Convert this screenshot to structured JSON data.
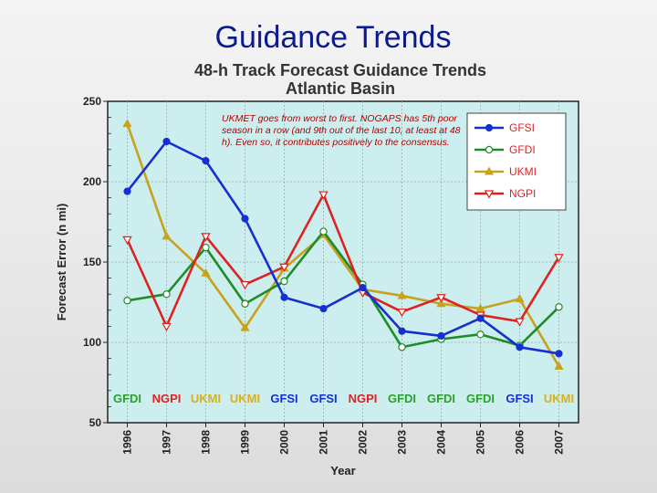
{
  "slide": {
    "title": "Guidance Trends"
  },
  "chart_data": {
    "type": "line",
    "title": "48-h Track Forecast Guidance Trends",
    "subtitle": "Atlantic Basin",
    "xlabel": "Year",
    "ylabel": "Forecast Error (n mi)",
    "ylim": [
      50,
      250
    ],
    "yticks": [
      50,
      100,
      150,
      200,
      250
    ],
    "categories": [
      "1996",
      "1997",
      "1998",
      "1999",
      "2000",
      "2001",
      "2002",
      "2003",
      "2004",
      "2005",
      "2006",
      "2007"
    ],
    "grid": true,
    "legend": "top-right",
    "series": [
      {
        "name": "GFSI",
        "color": "#1530d0",
        "marker": "filled-circle",
        "values": [
          194,
          225,
          213,
          177,
          128,
          121,
          134,
          107,
          104,
          115,
          97,
          93
        ]
      },
      {
        "name": "GFDI",
        "color": "#1e8c2a",
        "marker": "open-circle",
        "values": [
          126,
          130,
          159,
          124,
          138,
          169,
          136,
          97,
          102,
          105,
          98,
          122
        ]
      },
      {
        "name": "UKMI",
        "color": "#c8a21e",
        "marker": "triangle-up",
        "values": [
          236,
          166,
          143,
          109,
          146,
          167,
          133,
          129,
          124,
          121,
          127,
          85
        ]
      },
      {
        "name": "NGPI",
        "color": "#dd2222",
        "marker": "open-triangle-down",
        "values": [
          164,
          110,
          166,
          136,
          147,
          192,
          131,
          119,
          128,
          117,
          113,
          153
        ]
      }
    ],
    "best_model": [
      "GFDI",
      "NGPI",
      "UKMI",
      "UKMI",
      "GFSI",
      "GFSI",
      "NGPI",
      "GFDI",
      "GFDI",
      "GFDI",
      "GFSI",
      "UKMI"
    ],
    "annotation": "UKMET goes from worst to first.  NOGAPS has 5th poor season in a row (and 9th out of the last 10, at least at 48 h).  Even so, it contributes positively to the consensus."
  }
}
